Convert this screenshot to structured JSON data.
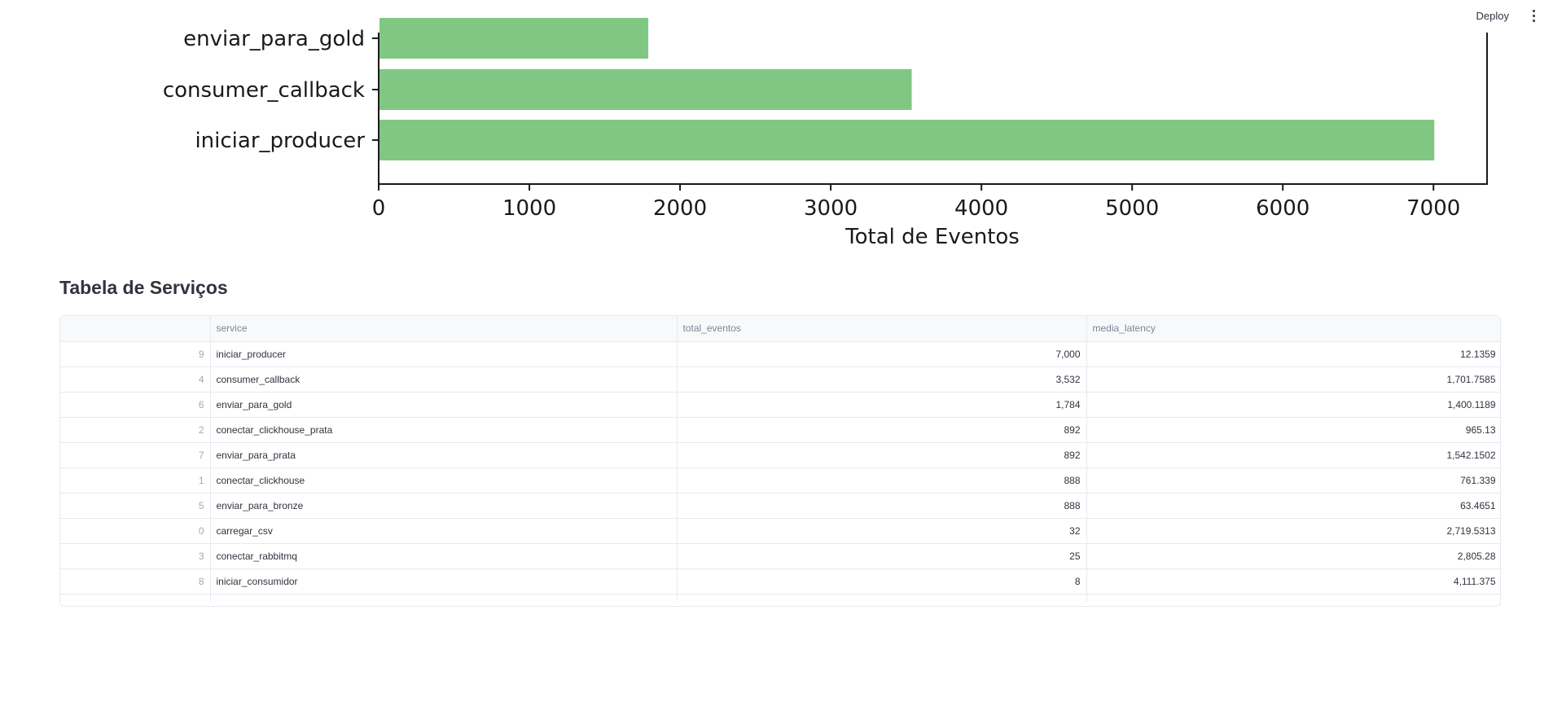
{
  "toolbar": {
    "deploy_label": "Deploy",
    "menu_icon": "vertical-dots-icon"
  },
  "chart_data": {
    "type": "bar",
    "orientation": "horizontal",
    "categories": [
      "enviar_para_gold",
      "consumer_callback",
      "iniciar_producer"
    ],
    "values": [
      1784,
      3532,
      7000
    ],
    "xlabel": "Total de Eventos",
    "ylabel": "",
    "xlim": [
      0,
      7350
    ],
    "xticks": [
      "0",
      "1000",
      "2000",
      "3000",
      "4000",
      "5000",
      "6000",
      "7000"
    ],
    "bar_color": "#81c784",
    "grid": false
  },
  "table_section": {
    "title": "Tabela de Serviços",
    "columns": [
      "",
      "service",
      "total_eventos",
      "media_latency"
    ],
    "rows": [
      {
        "index": "9",
        "service": "iniciar_producer",
        "total_eventos": "7,000",
        "media_latency": "12.1359"
      },
      {
        "index": "4",
        "service": "consumer_callback",
        "total_eventos": "3,532",
        "media_latency": "1,701.7585"
      },
      {
        "index": "6",
        "service": "enviar_para_gold",
        "total_eventos": "1,784",
        "media_latency": "1,400.1189"
      },
      {
        "index": "2",
        "service": "conectar_clickhouse_prata",
        "total_eventos": "892",
        "media_latency": "965.13"
      },
      {
        "index": "7",
        "service": "enviar_para_prata",
        "total_eventos": "892",
        "media_latency": "1,542.1502"
      },
      {
        "index": "1",
        "service": "conectar_clickhouse",
        "total_eventos": "888",
        "media_latency": "761.339"
      },
      {
        "index": "5",
        "service": "enviar_para_bronze",
        "total_eventos": "888",
        "media_latency": "63.4651"
      },
      {
        "index": "0",
        "service": "carregar_csv",
        "total_eventos": "32",
        "media_latency": "2,719.5313"
      },
      {
        "index": "3",
        "service": "conectar_rabbitmq",
        "total_eventos": "25",
        "media_latency": "2,805.28"
      },
      {
        "index": "8",
        "service": "iniciar_consumidor",
        "total_eventos": "8",
        "media_latency": "4,111.375"
      }
    ]
  }
}
